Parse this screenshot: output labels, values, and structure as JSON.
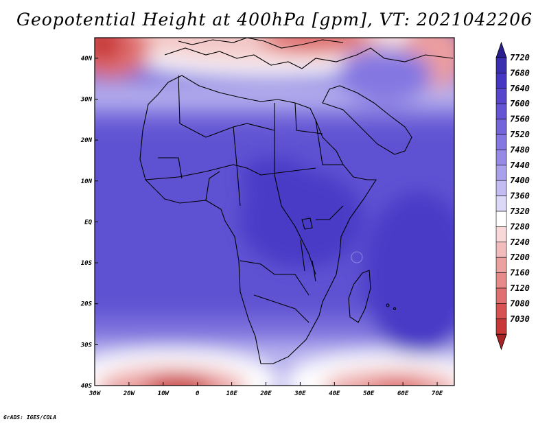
{
  "title": "Geopotential Height at 400hPa [gpm], VT: 2021042206",
  "credit": "GrADS: IGES/COLA",
  "map": {
    "lon_range": [
      -30,
      75
    ],
    "lat_range": [
      -40,
      45
    ],
    "lon_ticks": [
      {
        "value": -30,
        "label": "30W"
      },
      {
        "value": -20,
        "label": "20W"
      },
      {
        "value": -10,
        "label": "10W"
      },
      {
        "value": 0,
        "label": "0"
      },
      {
        "value": 10,
        "label": "10E"
      },
      {
        "value": 20,
        "label": "20E"
      },
      {
        "value": 30,
        "label": "30E"
      },
      {
        "value": 40,
        "label": "40E"
      },
      {
        "value": 50,
        "label": "50E"
      },
      {
        "value": 60,
        "label": "60E"
      },
      {
        "value": 70,
        "label": "70E"
      }
    ],
    "lat_ticks": [
      {
        "value": 40,
        "label": "40N"
      },
      {
        "value": 30,
        "label": "30N"
      },
      {
        "value": 20,
        "label": "20N"
      },
      {
        "value": 10,
        "label": "10N"
      },
      {
        "value": 0,
        "label": "EQ"
      },
      {
        "value": -10,
        "label": "10S"
      },
      {
        "value": -20,
        "label": "20S"
      },
      {
        "value": -30,
        "label": "30S"
      },
      {
        "value": -40,
        "label": "40S"
      }
    ]
  },
  "colorbar": {
    "levels": [
      "7720",
      "7680",
      "7640",
      "7600",
      "7560",
      "7520",
      "7480",
      "7440",
      "7400",
      "7360",
      "7320",
      "7280",
      "7240",
      "7200",
      "7160",
      "7120",
      "7080",
      "7030"
    ],
    "colors": [
      "#2a1f8f",
      "#3a2fb0",
      "#4636c4",
      "#5745cc",
      "#6555d4",
      "#7465db",
      "#8477e1",
      "#968ae6",
      "#aaa1ec",
      "#c2bcf2",
      "#dcd8f8",
      "#ffffff",
      "#f8d8d8",
      "#f2bcbc",
      "#eca1a1",
      "#e68a8a",
      "#e07070",
      "#d95252",
      "#c83838",
      "#a82424"
    ]
  }
}
